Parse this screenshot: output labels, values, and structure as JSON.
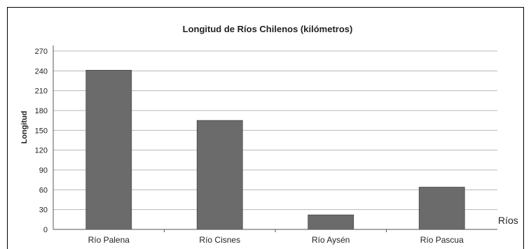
{
  "chart_data": {
    "type": "bar",
    "title": "Longitud de Ríos Chilenos (kilómetros)",
    "xlabel": "Ríos",
    "ylabel": "Longitud",
    "categories": [
      "Río Palena",
      "Río Cisnes",
      "Río Aysén",
      "Río Pascua"
    ],
    "values": [
      241,
      165,
      22,
      64
    ],
    "ylim": [
      0,
      270
    ],
    "yticks": [
      "0",
      "30",
      "60",
      "90",
      "120",
      "150",
      "180",
      "210",
      "240",
      "270"
    ],
    "grid": true,
    "bar_color": "#6b6b6b"
  }
}
